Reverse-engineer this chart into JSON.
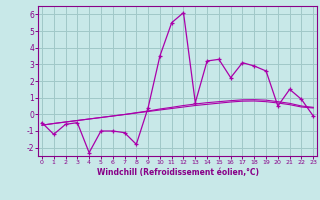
{
  "xlabel": "Windchill (Refroidissement éolien,°C)",
  "background_color": "#c8e8e8",
  "grid_color": "#a0c8c8",
  "line_color": "#aa00aa",
  "spine_color": "#880088",
  "tick_color": "#880088",
  "xlabel_color": "#880088",
  "x_data": [
    0,
    1,
    2,
    3,
    4,
    5,
    6,
    7,
    8,
    9,
    10,
    11,
    12,
    13,
    14,
    15,
    16,
    17,
    18,
    19,
    20,
    21,
    22,
    23
  ],
  "y_main": [
    -0.5,
    -1.2,
    -0.6,
    -0.5,
    -2.3,
    -1.0,
    -1.0,
    -1.1,
    -1.8,
    0.4,
    3.5,
    5.5,
    6.1,
    0.7,
    3.2,
    3.3,
    2.2,
    3.1,
    2.9,
    2.6,
    0.5,
    1.5,
    0.9,
    -0.1
  ],
  "y_trend1": [
    -0.65,
    -0.55,
    -0.46,
    -0.37,
    -0.28,
    -0.19,
    -0.1,
    -0.01,
    0.08,
    0.17,
    0.26,
    0.35,
    0.44,
    0.53,
    0.6,
    0.67,
    0.74,
    0.79,
    0.8,
    0.76,
    0.68,
    0.58,
    0.44,
    0.38
  ],
  "y_trend2": [
    -0.65,
    -0.55,
    -0.46,
    -0.37,
    -0.28,
    -0.19,
    -0.1,
    -0.01,
    0.1,
    0.2,
    0.32,
    0.42,
    0.53,
    0.62,
    0.7,
    0.76,
    0.82,
    0.87,
    0.88,
    0.85,
    0.76,
    0.66,
    0.5,
    0.42
  ],
  "ylim": [
    -2.5,
    6.5
  ],
  "xlim": [
    -0.3,
    23.3
  ],
  "yticks": [
    -2,
    -1,
    0,
    1,
    2,
    3,
    4,
    5,
    6
  ],
  "xticks": [
    0,
    1,
    2,
    3,
    4,
    5,
    6,
    7,
    8,
    9,
    10,
    11,
    12,
    13,
    14,
    15,
    16,
    17,
    18,
    19,
    20,
    21,
    22,
    23
  ]
}
